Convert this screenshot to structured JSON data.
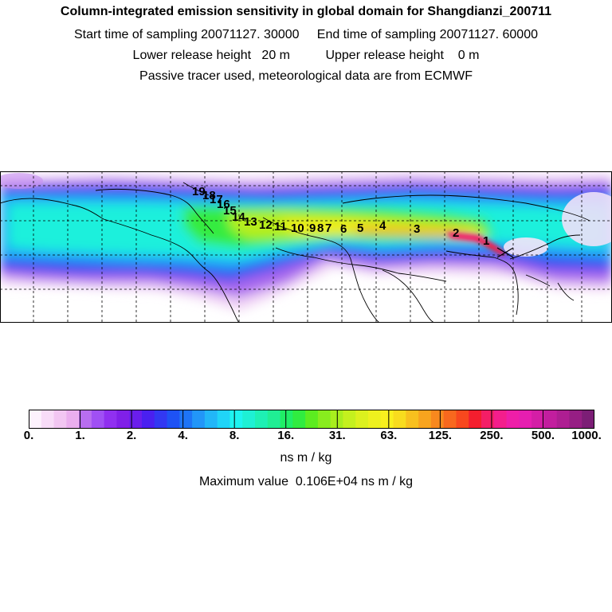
{
  "header": {
    "title": "Column-integrated emission sensitivity in global domain for Shangdianzi_200711",
    "sampling": "Start time of sampling 20071127. 30000     End time of sampling 20071127. 60000",
    "release": "Lower release height   20 m          Upper release height    0 m",
    "info": "Passive tracer used, meteorological data are from ECMWF"
  },
  "map": {
    "type": "heatmap",
    "day_labels": [
      "1",
      "2",
      "3",
      "4",
      "5",
      "6",
      "7",
      "8",
      "9",
      "10",
      "11",
      "12",
      "13",
      "14",
      "15",
      "16",
      "17",
      "18",
      "19"
    ]
  },
  "colorbar": {
    "tick_labels": [
      "0.",
      "1.",
      "2.",
      "4.",
      "8.",
      "16.",
      "31.",
      "63.",
      "125.",
      "250.",
      "500.",
      "1000."
    ],
    "colors": [
      "#fdf2fd",
      "#f8dcf8",
      "#f2c6f2",
      "#eaaeee",
      "#b86ef0",
      "#a050f4",
      "#9030f0",
      "#8020e8",
      "#6a1eec",
      "#4a20f0",
      "#3238f2",
      "#1e52f4",
      "#1e74f6",
      "#2296f8",
      "#22b6f8",
      "#20d4f8",
      "#1ef4f0",
      "#1ef0d4",
      "#1ef0b4",
      "#20ee94",
      "#20ee66",
      "#30ec40",
      "#5cec20",
      "#88ec1e",
      "#a8ee1e",
      "#c4f01e",
      "#dcf01e",
      "#eef01e",
      "#f8f01e",
      "#f8dc1e",
      "#f8c01e",
      "#f8a41e",
      "#f8881e",
      "#f8681e",
      "#f8481e",
      "#f41e2e",
      "#f41e66",
      "#f41e8c",
      "#ee1ea8",
      "#e61eb0",
      "#d41ea6",
      "#c21e9e",
      "#ae1e92",
      "#961e84",
      "#7c1e76"
    ],
    "units": "ns m / kg",
    "max_value": "Maximum value  0.106E+04 ns m / kg"
  }
}
